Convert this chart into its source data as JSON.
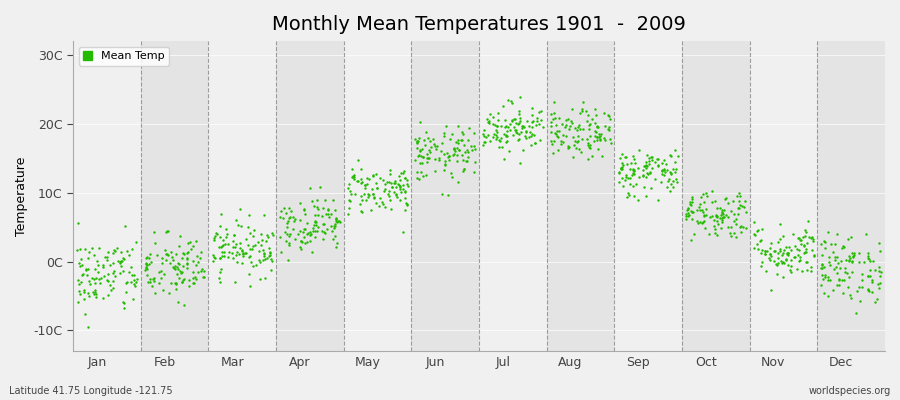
{
  "title": "Monthly Mean Temperatures 1901  -  2009",
  "ylabel": "Temperature",
  "xlabel_labels": [
    "Jan",
    "Feb",
    "Mar",
    "Apr",
    "May",
    "Jun",
    "Jul",
    "Aug",
    "Sep",
    "Oct",
    "Nov",
    "Dec"
  ],
  "ytick_labels": [
    "-10C",
    "0C",
    "10C",
    "20C",
    "30C"
  ],
  "ytick_values": [
    -10,
    0,
    10,
    20,
    30
  ],
  "ylim": [
    -13,
    32
  ],
  "dot_color": "#22BB00",
  "dot_size": 3,
  "bg_color": "#F0F0F0",
  "band_light": "#F0F0F0",
  "band_dark": "#E4E4E4",
  "grid_color": "#888888",
  "title_fontsize": 14,
  "axis_fontsize": 9,
  "legend_label": "Mean Temp",
  "footnote_left": "Latitude 41.75 Longitude -121.75",
  "footnote_right": "worldspecies.org",
  "n_years": 109,
  "monthly_means": [
    -2.0,
    -1.0,
    2.0,
    5.5,
    10.5,
    15.5,
    19.5,
    18.5,
    13.0,
    7.0,
    1.5,
    -1.0
  ],
  "monthly_stds": [
    2.8,
    2.5,
    2.0,
    2.0,
    1.8,
    2.0,
    1.8,
    1.8,
    1.8,
    1.8,
    2.0,
    2.5
  ],
  "seed": 42
}
